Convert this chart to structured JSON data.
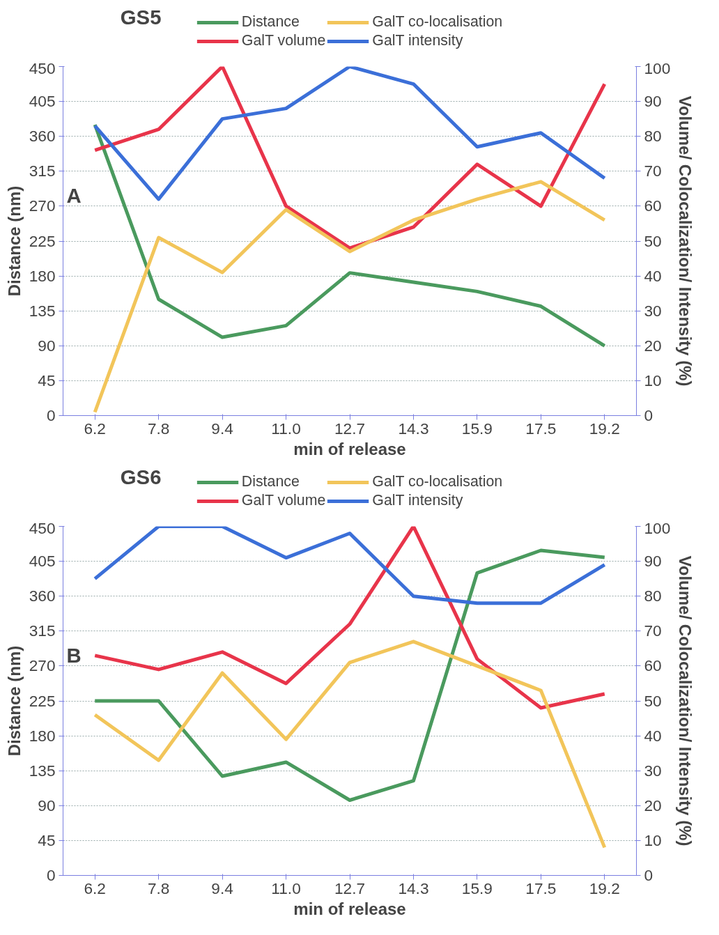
{
  "chart_data": [
    {
      "type": "line",
      "title": "GS5",
      "xlabel": "min of release",
      "ylabel": "Distance (nm)",
      "y2label": "Volume/ Colocalization/ Intensity (%)",
      "annotations": [
        "A"
      ],
      "categories": [
        "6.2",
        "7.8",
        "9.4",
        "11.0",
        "12.7",
        "14.3",
        "15.9",
        "17.5",
        "19.2"
      ],
      "ylim": [
        0,
        450
      ],
      "yticks": [
        0,
        45,
        90,
        135,
        180,
        225,
        270,
        315,
        360,
        405,
        450
      ],
      "y2lim": [
        0,
        100
      ],
      "y2ticks": [
        0,
        10,
        20,
        30,
        40,
        50,
        60,
        70,
        80,
        90,
        100
      ],
      "grid": "y",
      "legend": "top",
      "marker": "none",
      "line_style": "solid",
      "series": [
        {
          "name": "Distance",
          "color": "#4a9a5e",
          "values": [
            375,
            150,
            101,
            116,
            184,
            172,
            160,
            141,
            90
          ]
        },
        {
          "name": "GalT volume",
          "color": "#e8344a",
          "axis": "y2",
          "values": [
            76,
            82,
            100,
            60,
            48,
            54,
            72,
            60,
            95
          ]
        },
        {
          "name": "GalT co-localisation",
          "color": "#f2c55a",
          "axis": "y2",
          "values": [
            1,
            51,
            41,
            59,
            47,
            56,
            62,
            67,
            56
          ]
        },
        {
          "name": "GalT intensity",
          "color": "#3b6fd8",
          "axis": "y2",
          "values": [
            83,
            62,
            85,
            88,
            100,
            95,
            77,
            81,
            68
          ]
        }
      ]
    },
    {
      "type": "line",
      "title": "GS6",
      "xlabel": "min of release",
      "ylabel": "Distance (nm)",
      "y2label": "Volume/ Colocalization/ Intensity (%)",
      "annotations": [
        "B"
      ],
      "categories": [
        "6.2",
        "7.8",
        "9.4",
        "11.0",
        "12.7",
        "14.3",
        "15.9",
        "17.5",
        "19.2"
      ],
      "ylim": [
        0,
        450
      ],
      "yticks": [
        0,
        45,
        90,
        135,
        180,
        225,
        270,
        315,
        360,
        405,
        450
      ],
      "y2lim": [
        0,
        100
      ],
      "y2ticks": [
        0,
        10,
        20,
        30,
        40,
        50,
        60,
        70,
        80,
        90,
        100
      ],
      "grid": "y",
      "legend": "top",
      "marker": "none",
      "line_style": "solid",
      "series": [
        {
          "name": "Distance",
          "color": "#4a9a5e",
          "values": [
            225,
            225,
            128,
            146,
            97,
            122,
            390,
            419,
            410
          ]
        },
        {
          "name": "GalT volume",
          "color": "#e8344a",
          "axis": "y2",
          "values": [
            63,
            59,
            64,
            55,
            72,
            100,
            62,
            48,
            52
          ]
        },
        {
          "name": "GalT co-localisation",
          "color": "#f2c55a",
          "axis": "y2",
          "values": [
            46,
            33,
            58,
            39,
            61,
            67,
            60,
            53,
            8
          ]
        },
        {
          "name": "GalT intensity",
          "color": "#3b6fd8",
          "axis": "y2",
          "values": [
            85,
            100,
            100,
            91,
            98,
            80,
            78,
            78,
            89
          ]
        }
      ]
    }
  ]
}
